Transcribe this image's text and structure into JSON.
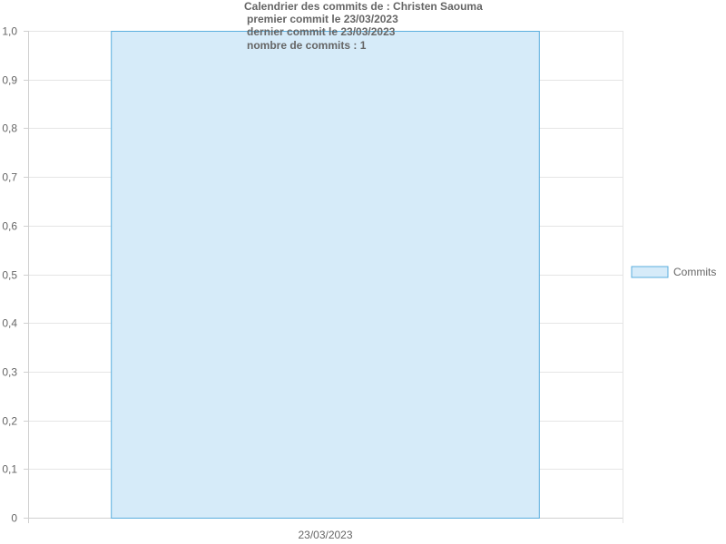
{
  "chart_data": {
    "type": "bar",
    "title_lines": [
      "Calendrier des commits de : Christen Saouma",
      "premier commit le 23/03/2023",
      "dernier commit le 23/03/2023",
      "nombre de commits : 1"
    ],
    "categories": [
      "23/03/2023"
    ],
    "series": [
      {
        "name": "Commits",
        "values": [
          1
        ]
      }
    ],
    "ylim": [
      0,
      1
    ],
    "yticks": [
      "0",
      "0,1",
      "0,2",
      "0,3",
      "0,4",
      "0,5",
      "0,6",
      "0,7",
      "0,8",
      "0,9",
      "1,0"
    ],
    "grid": true,
    "legend_position": "right",
    "colors": {
      "bar_fill": "#d6ebf9",
      "bar_stroke": "#5aaede",
      "grid": "#e5e5e5",
      "text": "#666666"
    }
  }
}
